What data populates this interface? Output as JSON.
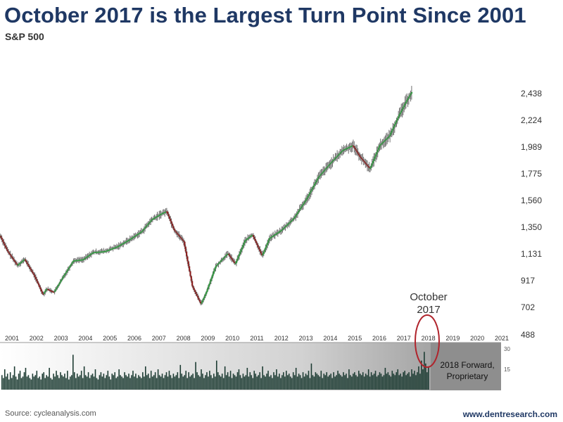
{
  "title": "October 2017 is the Largest Turn Point Since 2001",
  "subtitle": "S&P 500",
  "source": "Source: cycleanalysis.com",
  "website": "www.dentresearch.com",
  "chart_data": [
    {
      "type": "line",
      "ylim": [
        488,
        2540
      ],
      "y_ticks": [
        "2,438",
        "2,224",
        "1,989",
        "1,775",
        "1,560",
        "1,350",
        "1,131",
        "917",
        "702",
        "488"
      ],
      "x_ticks": [
        "2001",
        "2002",
        "2003",
        "2004",
        "2005",
        "2006",
        "2007",
        "2008",
        "2009",
        "2010",
        "2011",
        "2012",
        "2013",
        "2014",
        "2015",
        "2016",
        "2017",
        "2018",
        "2019",
        "2020",
        "2021"
      ],
      "grid": false,
      "series": [
        {
          "x": [
            2001.0,
            2001.3,
            2001.7,
            2002.0,
            2002.4,
            2002.75,
            2002.9,
            2003.2,
            2003.6,
            2004.0,
            2004.4,
            2004.8,
            2005.3,
            2005.8,
            2006.3,
            2006.8,
            2007.2,
            2007.6,
            2007.8,
            2008.1,
            2008.5,
            2008.85,
            2009.2,
            2009.4,
            2009.8,
            2010.3,
            2010.6,
            2011.0,
            2011.3,
            2011.7,
            2012.0,
            2012.5,
            2013.0,
            2013.5,
            2014.0,
            2014.5,
            2015.0,
            2015.4,
            2015.7,
            2016.1,
            2016.5,
            2016.9,
            2017.3,
            2017.6,
            2017.83
          ],
          "values": [
            1330,
            1200,
            1080,
            1130,
            990,
            830,
            880,
            850,
            990,
            1120,
            1130,
            1190,
            1200,
            1240,
            1300,
            1370,
            1470,
            1520,
            1540,
            1380,
            1280,
            900,
            750,
            840,
            1070,
            1180,
            1090,
            1290,
            1340,
            1160,
            1310,
            1380,
            1480,
            1640,
            1830,
            1950,
            2060,
            2100,
            2000,
            1900,
            2100,
            2180,
            2360,
            2480,
            2560
          ]
        }
      ]
    },
    {
      "type": "bar",
      "ylim": [
        0,
        30
      ],
      "y_ticks": [
        "30",
        "15"
      ],
      "values": [
        10,
        8,
        14,
        9,
        11,
        7,
        12,
        8,
        10,
        16,
        9,
        7,
        11,
        13,
        8,
        9,
        12,
        15,
        9,
        10,
        8,
        7,
        11,
        9,
        10,
        13,
        8,
        9,
        7,
        11,
        12,
        8,
        10,
        9,
        15,
        8,
        7,
        11,
        9,
        13,
        10,
        8,
        12,
        10,
        9,
        11,
        8,
        13,
        7,
        9,
        10,
        24,
        12,
        8,
        11,
        9,
        10,
        13,
        8,
        16,
        10,
        9,
        12,
        8,
        10,
        11,
        9,
        14,
        8,
        7,
        10,
        12,
        9,
        11,
        8,
        10,
        13,
        9,
        7,
        11,
        10,
        12,
        8,
        9,
        14,
        10,
        9,
        8,
        12,
        10,
        9,
        11,
        8,
        10,
        13,
        9,
        11,
        8,
        10,
        9,
        8,
        12,
        9,
        16,
        10,
        11,
        8,
        13,
        9,
        10,
        12,
        8,
        14,
        10,
        9,
        11,
        8,
        10,
        12,
        9,
        13,
        10,
        8,
        11,
        9,
        10,
        12,
        8,
        17,
        11,
        9,
        10,
        13,
        8,
        12,
        9,
        10,
        11,
        8,
        19,
        12,
        10,
        9,
        14,
        11,
        8,
        10,
        12,
        9,
        13,
        10,
        8,
        11,
        9,
        20,
        12,
        10,
        9,
        11,
        8,
        16,
        10,
        12,
        9,
        13,
        8,
        11,
        10,
        9,
        12,
        14,
        10,
        8,
        11,
        9,
        10,
        15,
        9,
        12,
        10,
        8,
        13,
        11,
        9,
        10,
        12,
        8,
        16,
        10,
        9,
        11,
        13,
        9,
        10,
        8,
        12,
        10,
        14,
        9,
        11,
        8,
        10,
        12,
        9,
        13,
        10,
        11,
        9,
        8,
        12,
        10,
        15,
        9,
        11,
        10,
        8,
        12,
        9,
        11,
        10,
        13,
        8,
        18,
        10,
        9,
        12,
        11,
        10,
        9,
        13,
        8,
        11,
        10,
        12,
        9,
        10,
        11,
        8,
        12,
        9,
        10,
        13,
        11,
        10,
        9,
        12,
        10,
        11,
        8,
        14,
        10,
        9,
        11,
        12,
        10,
        9,
        13,
        11,
        10,
        12,
        9,
        11,
        10,
        14,
        9,
        12,
        10,
        11,
        13,
        9,
        10,
        12,
        11,
        9,
        10,
        15,
        11,
        12,
        10,
        9,
        13,
        11,
        10,
        12,
        14,
        10,
        11,
        9,
        12,
        13,
        10,
        11,
        12,
        9,
        14,
        11,
        13,
        10,
        12,
        16,
        11,
        20,
        14,
        26,
        18,
        12,
        16
      ]
    }
  ],
  "annotation": {
    "line1": "October",
    "line2": "2017",
    "forward_label_1": "2018 Forward,",
    "forward_label_2": "Proprietary"
  },
  "colors": {
    "title": "#1f3864",
    "up": "#2e9e3e",
    "down": "#8c1f1f",
    "wick": "#6e6e6e",
    "volume": "#1c3b32",
    "circle": "#b0242c"
  }
}
